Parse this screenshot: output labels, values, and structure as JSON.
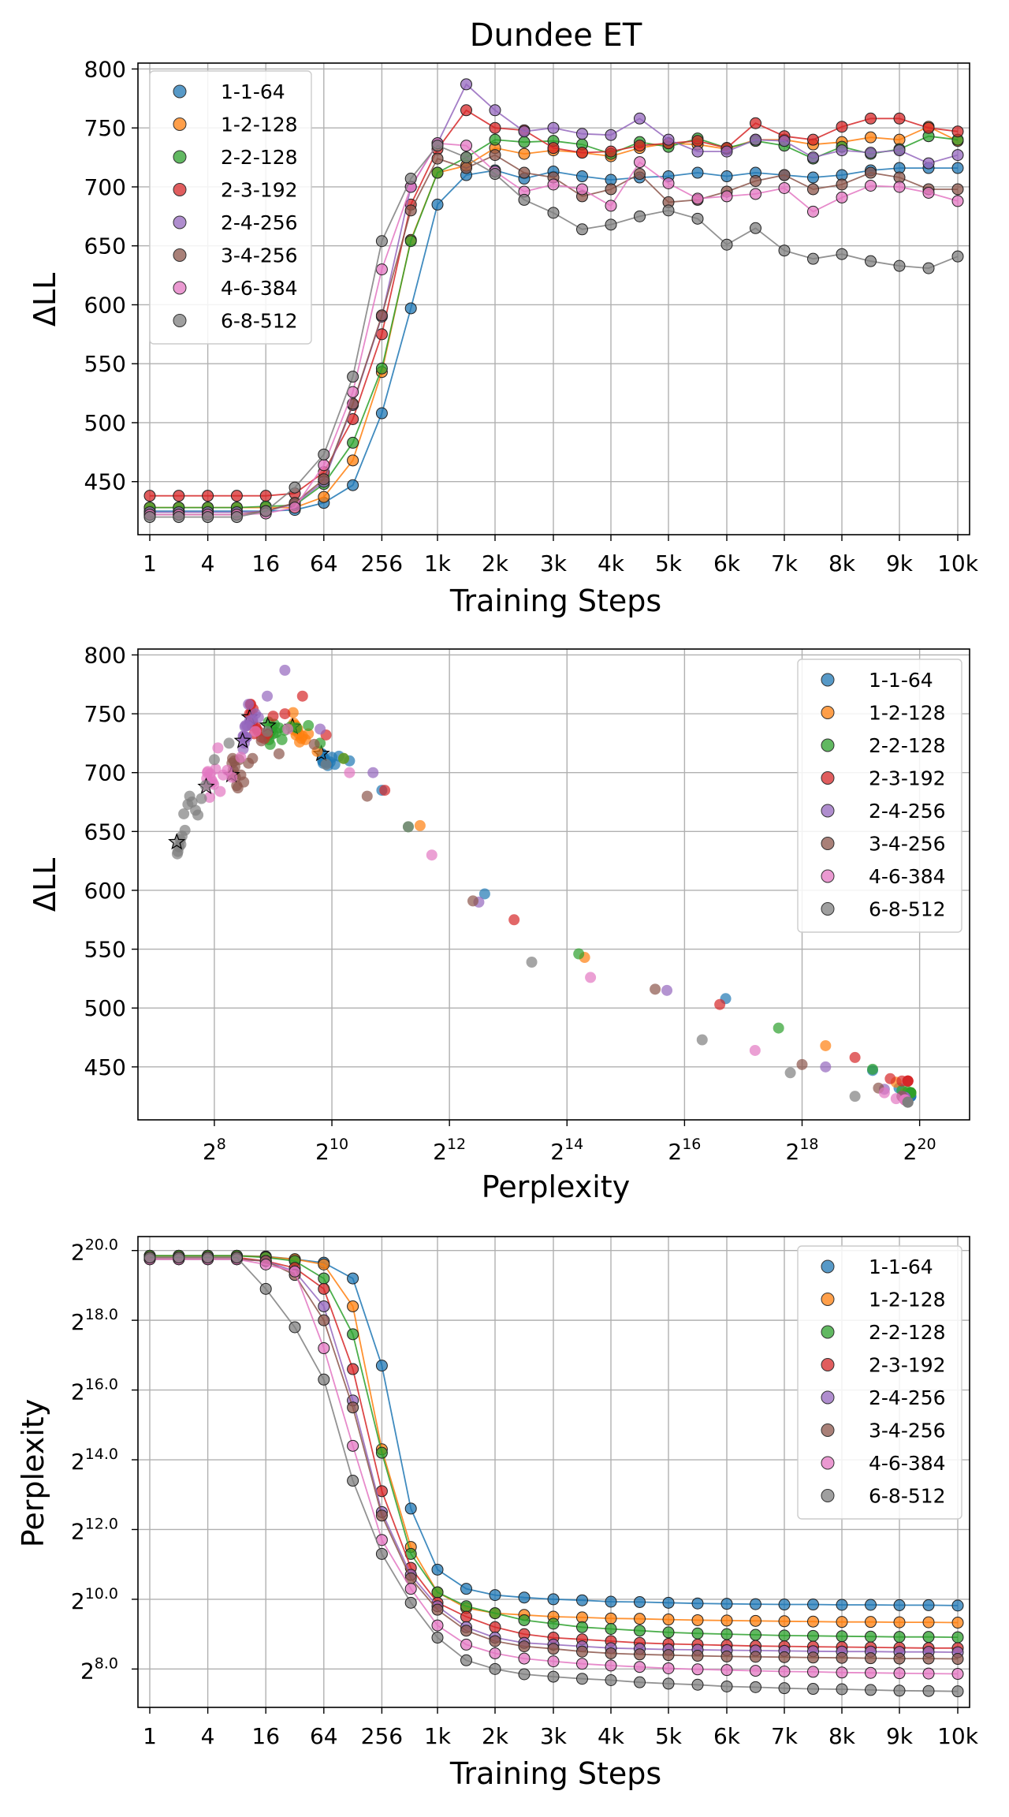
{
  "title": "Dundee ET",
  "series_names": [
    "1-1-64",
    "1-2-128",
    "2-2-128",
    "2-3-192",
    "2-4-256",
    "3-4-256",
    "4-6-384",
    "6-8-512"
  ],
  "colors": [
    "#1f77b4",
    "#ff7f0e",
    "#2ca02c",
    "#d62728",
    "#9467bd",
    "#8c564b",
    "#e377c2",
    "#7f7f7f"
  ],
  "chart_data": [
    {
      "type": "line",
      "title": "Dundee ET",
      "xlabel": "Training Steps",
      "ylabel": "ΔLL",
      "x_tick_labels": [
        "1",
        "4",
        "16",
        "64",
        "256",
        "1k",
        "2k",
        "3k",
        "4k",
        "5k",
        "6k",
        "7k",
        "8k",
        "9k",
        "10k"
      ],
      "y_ticks": [
        450,
        500,
        550,
        600,
        650,
        700,
        750,
        800
      ],
      "ylim": [
        405,
        805
      ],
      "grid": true,
      "legend_position": "top-left",
      "x": [
        "1",
        "2",
        "4",
        "8",
        "16",
        "32",
        "64",
        "128",
        "256",
        "512",
        "1k",
        "1.5k",
        "2k",
        "2.5k",
        "3k",
        "3.5k",
        "4k",
        "4.5k",
        "5k",
        "5.5k",
        "6k",
        "6.5k",
        "7k",
        "7.5k",
        "8k",
        "8.5k",
        "9k",
        "9.5k",
        "10k"
      ],
      "series": [
        {
          "name": "1-1-64",
          "values": [
            425,
            425,
            425,
            425,
            425,
            426,
            432,
            447,
            508,
            597,
            685,
            710,
            714,
            707,
            713,
            709,
            706,
            708,
            709,
            712,
            709,
            712,
            710,
            708,
            710,
            714,
            716,
            716,
            716
          ]
        },
        {
          "name": "1-2-128",
          "values": [
            428,
            428,
            428,
            428,
            428,
            428,
            437,
            468,
            543,
            655,
            712,
            718,
            733,
            728,
            731,
            729,
            726,
            733,
            737,
            736,
            732,
            740,
            740,
            736,
            738,
            742,
            740,
            751,
            739
          ]
        },
        {
          "name": "2-2-128",
          "values": [
            428,
            428,
            428,
            428,
            429,
            430,
            448,
            483,
            546,
            654,
            712,
            725,
            740,
            738,
            739,
            736,
            728,
            738,
            734,
            741,
            733,
            739,
            735,
            724,
            734,
            728,
            732,
            743,
            740
          ]
        },
        {
          "name": "2-3-192",
          "values": [
            438,
            438,
            438,
            438,
            438,
            440,
            458,
            503,
            575,
            685,
            732,
            765,
            750,
            748,
            733,
            729,
            730,
            735,
            737,
            739,
            733,
            754,
            743,
            740,
            751,
            758,
            758,
            750,
            747
          ]
        },
        {
          "name": "2-4-256",
          "values": [
            424,
            424,
            424,
            424,
            425,
            431,
            450,
            515,
            590,
            700,
            737,
            787,
            765,
            747,
            750,
            745,
            744,
            758,
            740,
            730,
            730,
            740,
            739,
            725,
            731,
            729,
            731,
            720,
            727
          ]
        },
        {
          "name": "3-4-256",
          "values": [
            422,
            422,
            422,
            422,
            425,
            432,
            452,
            516,
            591,
            680,
            724,
            716,
            727,
            712,
            708,
            692,
            698,
            711,
            687,
            689,
            696,
            705,
            710,
            698,
            702,
            712,
            708,
            698,
            698
          ]
        },
        {
          "name": "4-6-384",
          "values": [
            422,
            422,
            422,
            422,
            423,
            428,
            464,
            526,
            630,
            700,
            737,
            735,
            713,
            696,
            702,
            698,
            684,
            721,
            703,
            690,
            692,
            694,
            699,
            679,
            691,
            701,
            700,
            695,
            688
          ]
        },
        {
          "name": "6-8-512",
          "values": [
            420,
            420,
            420,
            420,
            425,
            445,
            473,
            539,
            654,
            707,
            735,
            725,
            711,
            689,
            678,
            664,
            668,
            675,
            680,
            673,
            651,
            665,
            646,
            639,
            643,
            637,
            633,
            631,
            641
          ]
        }
      ]
    },
    {
      "type": "scatter",
      "xlabel": "Perplexity",
      "ylabel": "ΔLL",
      "x_scale": "log2",
      "x_tick_labels": [
        "2^8",
        "2^10",
        "2^12",
        "2^14",
        "2^16",
        "2^18",
        "2^20"
      ],
      "y_ticks": [
        450,
        500,
        550,
        600,
        650,
        700,
        750,
        800
      ],
      "xlim_log2": [
        6.7,
        20.85
      ],
      "ylim": [
        405,
        805
      ],
      "grid": true,
      "legend_position": "top-right",
      "note_stars": "star markers indicate the final checkpoint of each model",
      "series": [
        {
          "name": "1-1-64",
          "log2_ppl": [
            19.85,
            19.85,
            19.85,
            19.85,
            19.83,
            19.75,
            19.65,
            19.2,
            16.7,
            12.6,
            10.85,
            10.3,
            10.12,
            10.05,
            10.0,
            9.97,
            9.93,
            9.92,
            9.9,
            9.88,
            9.87,
            9.86,
            9.85,
            9.85,
            9.84,
            9.84,
            9.83,
            9.83,
            9.82
          ],
          "values": [
            425,
            425,
            425,
            425,
            425,
            426,
            432,
            447,
            508,
            597,
            685,
            710,
            714,
            707,
            713,
            709,
            706,
            708,
            709,
            712,
            709,
            712,
            710,
            708,
            710,
            714,
            716,
            716,
            716
          ]
        },
        {
          "name": "1-2-128",
          "log2_ppl": [
            19.85,
            19.85,
            19.85,
            19.85,
            19.82,
            19.75,
            19.6,
            18.4,
            14.3,
            11.5,
            10.2,
            9.75,
            9.6,
            9.55,
            9.5,
            9.48,
            9.45,
            9.44,
            9.42,
            9.4,
            9.39,
            9.38,
            9.37,
            9.36,
            9.35,
            9.35,
            9.34,
            9.34,
            9.33
          ]
        },
        {
          "name": "2-2-128",
          "log2_ppl": [
            19.85,
            19.85,
            19.85,
            19.85,
            19.8,
            19.7,
            19.2,
            17.6,
            14.2,
            11.3,
            10.2,
            9.8,
            9.6,
            9.4,
            9.3,
            9.2,
            9.15,
            9.1,
            9.05,
            9.02,
            9.0,
            8.98,
            8.96,
            8.95,
            8.94,
            8.93,
            8.92,
            8.92,
            8.91
          ]
        },
        {
          "name": "2-3-192",
          "log2_ppl": [
            19.8,
            19.8,
            19.8,
            19.8,
            19.7,
            19.5,
            18.9,
            16.6,
            13.1,
            10.9,
            9.9,
            9.5,
            9.2,
            9.0,
            8.9,
            8.85,
            8.8,
            8.75,
            8.72,
            8.7,
            8.68,
            8.66,
            8.65,
            8.64,
            8.63,
            8.62,
            8.61,
            8.6,
            8.6
          ]
        },
        {
          "name": "2-4-256",
          "log2_ppl": [
            19.75,
            19.75,
            19.75,
            19.75,
            19.7,
            19.4,
            18.4,
            15.7,
            12.5,
            10.7,
            9.8,
            9.2,
            8.9,
            8.75,
            8.7,
            8.65,
            8.6,
            8.58,
            8.56,
            8.55,
            8.54,
            8.53,
            8.52,
            8.51,
            8.5,
            8.5,
            8.49,
            8.49,
            8.48
          ]
        },
        {
          "name": "3-4-256",
          "log2_ppl": [
            19.75,
            19.75,
            19.75,
            19.75,
            19.7,
            19.3,
            18.0,
            15.5,
            12.4,
            10.6,
            9.7,
            9.1,
            8.8,
            8.65,
            8.58,
            8.5,
            8.45,
            8.42,
            8.4,
            8.38,
            8.36,
            8.35,
            8.34,
            8.33,
            8.32,
            8.31,
            8.3,
            8.3,
            8.29
          ]
        },
        {
          "name": "4-6-384",
          "log2_ppl": [
            19.75,
            19.75,
            19.75,
            19.75,
            19.6,
            19.4,
            17.2,
            14.4,
            11.7,
            10.3,
            9.25,
            8.7,
            8.45,
            8.3,
            8.22,
            8.15,
            8.1,
            8.06,
            8.02,
            7.99,
            7.97,
            7.95,
            7.93,
            7.92,
            7.9,
            7.89,
            7.88,
            7.87,
            7.86
          ]
        },
        {
          "name": "6-8-512",
          "log2_ppl": [
            19.8,
            19.8,
            19.8,
            19.8,
            18.9,
            17.8,
            16.3,
            13.4,
            11.3,
            9.9,
            8.9,
            8.25,
            8.0,
            7.85,
            7.78,
            7.72,
            7.68,
            7.62,
            7.58,
            7.55,
            7.5,
            7.48,
            7.45,
            7.43,
            7.42,
            7.4,
            7.38,
            7.37,
            7.36
          ]
        }
      ]
    },
    {
      "type": "line",
      "xlabel": "Training Steps",
      "ylabel": "Perplexity",
      "y_scale": "log2",
      "x_tick_labels": [
        "1",
        "4",
        "16",
        "64",
        "256",
        "1k",
        "2k",
        "3k",
        "4k",
        "5k",
        "6k",
        "7k",
        "8k",
        "9k",
        "10k"
      ],
      "y_tick_labels": [
        "2^8.0",
        "2^10.0",
        "2^12.0",
        "2^14.0",
        "2^16.0",
        "2^18.0",
        "2^20.0"
      ],
      "ylim_log2": [
        6.9,
        20.4
      ],
      "grid": true,
      "legend_position": "top-right"
    }
  ]
}
